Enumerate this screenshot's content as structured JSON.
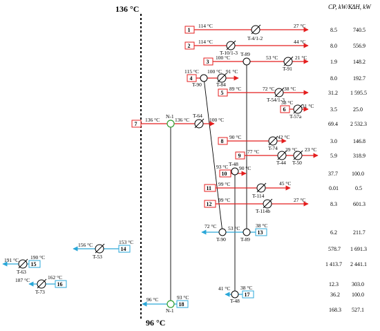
{
  "pinch": {
    "top": "136 °C",
    "bottom": "96 °C"
  },
  "headers": {
    "cp": "CP, kW/K",
    "dh": "ΔH, kW"
  },
  "colors": {
    "hot": "#e41e1e",
    "cold": "#2aa7d8",
    "heater": "#2f9e2f",
    "line": "#000000"
  },
  "streams": [
    {
      "num": "1",
      "t_in": "114 °C",
      "t_out": "27 °C",
      "hx": "T-4/1-2",
      "cp": "8.5",
      "dh": "740.5"
    },
    {
      "num": "2",
      "t_in": "114 °C",
      "t_out": "44 °C",
      "hx": "T-10/1-3",
      "cp": "8.0",
      "dh": "556.9"
    },
    {
      "num": "3",
      "t_in": "100 °C",
      "t_out": "21 °C",
      "hx": "T-91",
      "match": "T-89",
      "mid": "53 °C",
      "cp": "1.9",
      "dh": "148.2"
    },
    {
      "num": "4",
      "t_in": "115 °C",
      "t_out": "91 °C",
      "hx": "T-84",
      "match": "T-90",
      "mid": "100 °C",
      "cp": "8.0",
      "dh": "192.7"
    },
    {
      "num": "5",
      "t_in": "89 °C",
      "t_out": "38 °C",
      "hx": "T-54/1-3",
      "mid": "72 °C",
      "cp": "31.2",
      "dh": "1 595.5"
    },
    {
      "num": "6",
      "t_in": "38 °C",
      "t_out": "31 °C",
      "hx": "T-57a",
      "cp": "3.5",
      "dh": "25.0"
    },
    {
      "num": "7",
      "t_in": "136 °C",
      "t_out": "100 °C",
      "hx": "T-64",
      "match": "N-1",
      "mid": "136 °C",
      "cp": "69.4",
      "dh": "2 532.3"
    },
    {
      "num": "8",
      "t_in": "90 °C",
      "t_out": "42 °C",
      "hx": "T-74",
      "cp": "3.0",
      "dh": "146.8"
    },
    {
      "num": "9",
      "t_in": "77 °C",
      "t_out": "23 °C",
      "hx": "T-44",
      "hx2": "T-50",
      "mid": "39 °C",
      "cp": "5.9",
      "dh": "318.9"
    },
    {
      "num": "10",
      "t_in": "93 °C",
      "t_out": "90 °C",
      "hx": "T-48",
      "cp": "37.7",
      "dh": "100.0"
    },
    {
      "num": "11",
      "t_in": "99 °C",
      "t_out": "45 °C",
      "hx": "T-114",
      "cp": "0.01",
      "dh": "0.5"
    },
    {
      "num": "12",
      "t_in": "99 °C",
      "t_out": "27 °C",
      "hx": "T-114b",
      "cp": "8.3",
      "dh": "601.3"
    },
    {
      "num": "13",
      "t_in": "38 °C",
      "t_out": "72 °C",
      "hx": "T-90",
      "match": "T-89",
      "mid": "53 °C",
      "cp": "6.2",
      "dh": "211.7"
    },
    {
      "num": "14",
      "t_in": "153 °C",
      "t_out": "156 °C",
      "hx": "T-53",
      "cp": "578.7",
      "dh": "1 691.3"
    },
    {
      "num": "15",
      "t_in": "190 °C",
      "t_out": "191 °C",
      "hx": "T-63",
      "cp": "1 413.7",
      "dh": "2 441.1"
    },
    {
      "num": "16",
      "t_in": "162 °C",
      "t_out": "187 °C",
      "hx": "T-73",
      "cp": "12.3",
      "dh": "303.0"
    },
    {
      "num": "17",
      "t_in": "38 °C",
      "t_out": "41 °C",
      "hx": "T-48",
      "cp": "36.2",
      "dh": "100.0"
    },
    {
      "num": "18",
      "t_in": "93 °C",
      "t_out": "96 °C",
      "hx": "N-1",
      "cp": "168.3",
      "dh": "527.1"
    }
  ]
}
